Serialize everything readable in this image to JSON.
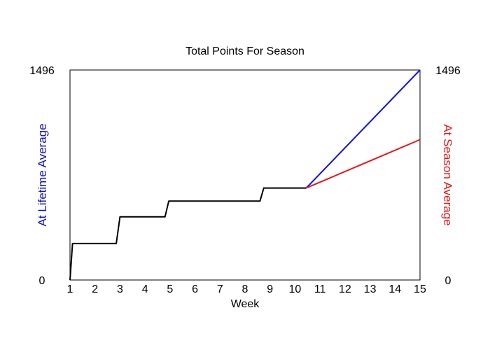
{
  "chart_data": {
    "type": "line",
    "title": "Total Points For Season",
    "xlabel": "Week",
    "ylabel_left": "At Lifetime Average",
    "ylabel_right": "At Season Average",
    "xlim": [
      1,
      15
    ],
    "ylim": [
      0,
      1496
    ],
    "x_ticks": [
      "1",
      "2",
      "3",
      "4",
      "5",
      "6",
      "7",
      "8",
      "9",
      "10",
      "11",
      "12",
      "13",
      "14",
      "15"
    ],
    "y_left_ticks": [
      "0",
      "1496"
    ],
    "y_right_ticks": [
      "0",
      "1496"
    ],
    "grid": false,
    "colors": {
      "actual": "#000000",
      "lifetime": "#1010e0",
      "season": "#e01818",
      "ylabel_left": "#1010c0",
      "ylabel_right": "#e01818"
    },
    "series": [
      {
        "key": "actual",
        "x": [
          1,
          1.1,
          2.85,
          3,
          4.8,
          4.95,
          8.6,
          8.75,
          10.45
        ],
        "y": [
          0,
          260,
          260,
          450,
          450,
          562,
          562,
          655,
          655
        ]
      },
      {
        "key": "lifetime",
        "x": [
          10.45,
          15
        ],
        "y": [
          655,
          1496
        ]
      },
      {
        "key": "season",
        "x": [
          10.45,
          15
        ],
        "y": [
          655,
          1000
        ]
      }
    ]
  }
}
